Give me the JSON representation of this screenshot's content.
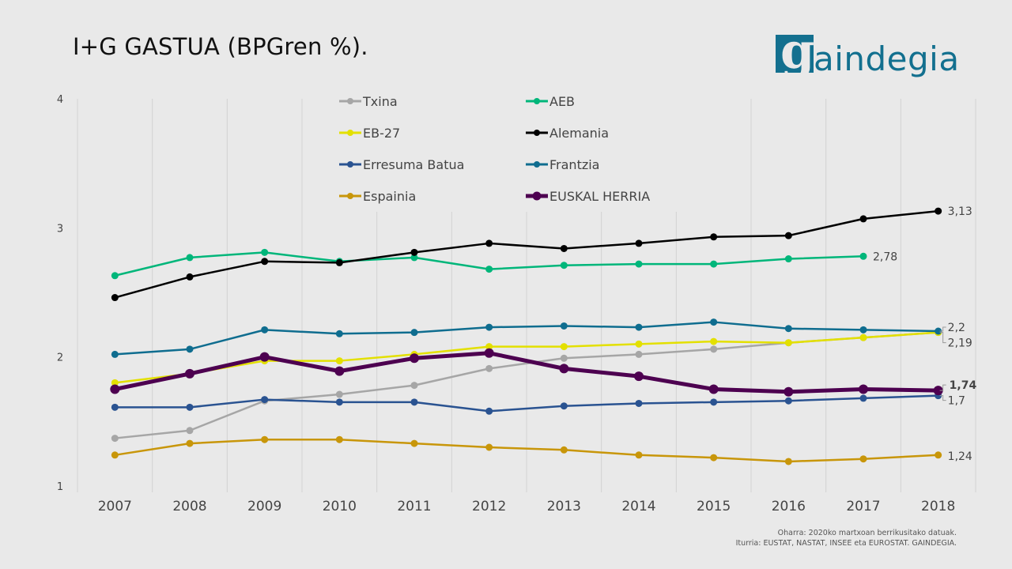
{
  "header": {
    "title": "I+G GASTUA (BPGren %).",
    "logo_letter": "g",
    "logo_text": "aindegia",
    "logo_color": "#13708f"
  },
  "footer": {
    "note": "Oharra: 2020ko martxoan berrikusitako datuak.",
    "source": "Iturria: EUSTAT, NASTAT, INSEE eta EUROSTAT. GAINDEGIA."
  },
  "chart_data": {
    "type": "line",
    "title": "I+G GASTUA (BPGren %).",
    "xlabel": "",
    "ylabel": "",
    "x": [
      "2007",
      "2008",
      "2009",
      "2010",
      "2011",
      "2012",
      "2013",
      "2014",
      "2015",
      "2016",
      "2017",
      "2018"
    ],
    "ylim": [
      1,
      4
    ],
    "yticks": [
      "1",
      "2",
      "3",
      "4"
    ],
    "grid": "vertical",
    "legend_position": "top-center",
    "series": [
      {
        "name": "Txina",
        "color": "#a6a6a6",
        "bold": false,
        "values": [
          1.37,
          1.43,
          1.66,
          1.71,
          1.78,
          1.91,
          1.99,
          2.02,
          2.06,
          2.11,
          2.15,
          2.19
        ],
        "end_label": null,
        "end_label_color": null
      },
      {
        "name": "AEB",
        "color": "#00b67a",
        "bold": false,
        "values": [
          2.63,
          2.77,
          2.81,
          2.74,
          2.77,
          2.68,
          2.71,
          2.72,
          2.72,
          2.76,
          2.78,
          null
        ],
        "end_label": "2,78",
        "end_label_color": "#00b67a"
      },
      {
        "name": "EB-27",
        "color": "#e3e000",
        "bold": false,
        "values": [
          1.8,
          1.87,
          1.97,
          1.97,
          2.02,
          2.08,
          2.08,
          2.1,
          2.12,
          2.11,
          2.15,
          2.19
        ],
        "end_label": "2,19",
        "end_label_color": "#7a5c10"
      },
      {
        "name": "Alemania",
        "color": "#000000",
        "bold": false,
        "values": [
          2.46,
          2.62,
          2.74,
          2.73,
          2.81,
          2.88,
          2.84,
          2.88,
          2.93,
          2.94,
          3.07,
          3.13
        ],
        "end_label": "3,13",
        "end_label_color": "#000000"
      },
      {
        "name": "Erresuma Batua",
        "color": "#2a5391",
        "bold": false,
        "values": [
          1.61,
          1.61,
          1.67,
          1.65,
          1.65,
          1.58,
          1.62,
          1.64,
          1.65,
          1.66,
          1.68,
          1.7
        ],
        "end_label": "1,7",
        "end_label_color": "#2a5391"
      },
      {
        "name": "Frantzia",
        "color": "#0f6d8f",
        "bold": false,
        "values": [
          2.02,
          2.06,
          2.21,
          2.18,
          2.19,
          2.23,
          2.24,
          2.23,
          2.27,
          2.22,
          2.21,
          2.2
        ],
        "end_label": "2,2",
        "end_label_color": "#0a7a3a"
      },
      {
        "name": "Espainia",
        "color": "#c8960a",
        "bold": false,
        "values": [
          1.24,
          1.33,
          1.36,
          1.36,
          1.33,
          1.3,
          1.28,
          1.24,
          1.22,
          1.19,
          1.21,
          1.24
        ],
        "end_label": "1,24",
        "end_label_color": "#7a5c10"
      },
      {
        "name": "EUSKAL HERRIA",
        "color": "#4d0050",
        "bold": true,
        "values": [
          1.75,
          1.87,
          2.0,
          1.89,
          1.99,
          2.03,
          1.91,
          1.85,
          1.75,
          1.73,
          1.75,
          1.74
        ],
        "end_label": "1,74",
        "end_label_color": "#6a2aa0"
      }
    ]
  }
}
